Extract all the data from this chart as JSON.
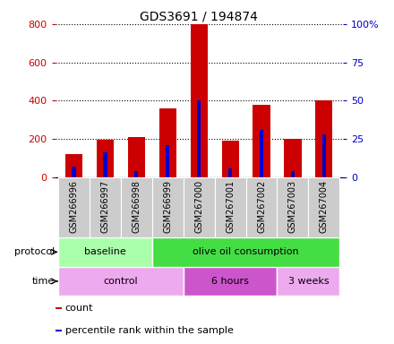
{
  "title": "GDS3691 / 194874",
  "samples": [
    "GSM266996",
    "GSM266997",
    "GSM266998",
    "GSM266999",
    "GSM267000",
    "GSM267001",
    "GSM267002",
    "GSM267003",
    "GSM267004"
  ],
  "counts": [
    120,
    195,
    210,
    360,
    800,
    190,
    380,
    200,
    400
  ],
  "percentiles": [
    7,
    16,
    4,
    21,
    50,
    6,
    31,
    4,
    28
  ],
  "left_ylim": [
    0,
    800
  ],
  "right_ylim": [
    0,
    100
  ],
  "left_yticks": [
    0,
    200,
    400,
    600,
    800
  ],
  "right_yticks": [
    0,
    25,
    50,
    75,
    100
  ],
  "right_yticklabels": [
    "0",
    "25",
    "50",
    "75",
    "100%"
  ],
  "bar_color_red": "#cc0000",
  "bar_color_blue": "#0000cc",
  "protocol_groups": [
    {
      "label": "baseline",
      "start": 0,
      "end": 3,
      "color": "#aaeea  a"
    },
    {
      "label": "olive oil consumption",
      "start": 3,
      "end": 9,
      "color": "#44dd44"
    }
  ],
  "time_groups": [
    {
      "label": "control",
      "start": 0,
      "end": 4,
      "color": "#eeaaee"
    },
    {
      "label": "6 hours",
      "start": 4,
      "end": 7,
      "color": "#cc55cc"
    },
    {
      "label": "3 weeks",
      "start": 7,
      "end": 9,
      "color": "#eeaaee"
    }
  ],
  "legend_items": [
    {
      "label": "count",
      "color": "#cc0000"
    },
    {
      "label": "percentile rank within the sample",
      "color": "#0000cc"
    }
  ],
  "tick_label_color_left": "#cc0000",
  "tick_label_color_right": "#0000cc",
  "bar_width": 0.55,
  "blue_bar_width": 0.12,
  "figsize": [
    4.4,
    3.84
  ],
  "dpi": 100
}
